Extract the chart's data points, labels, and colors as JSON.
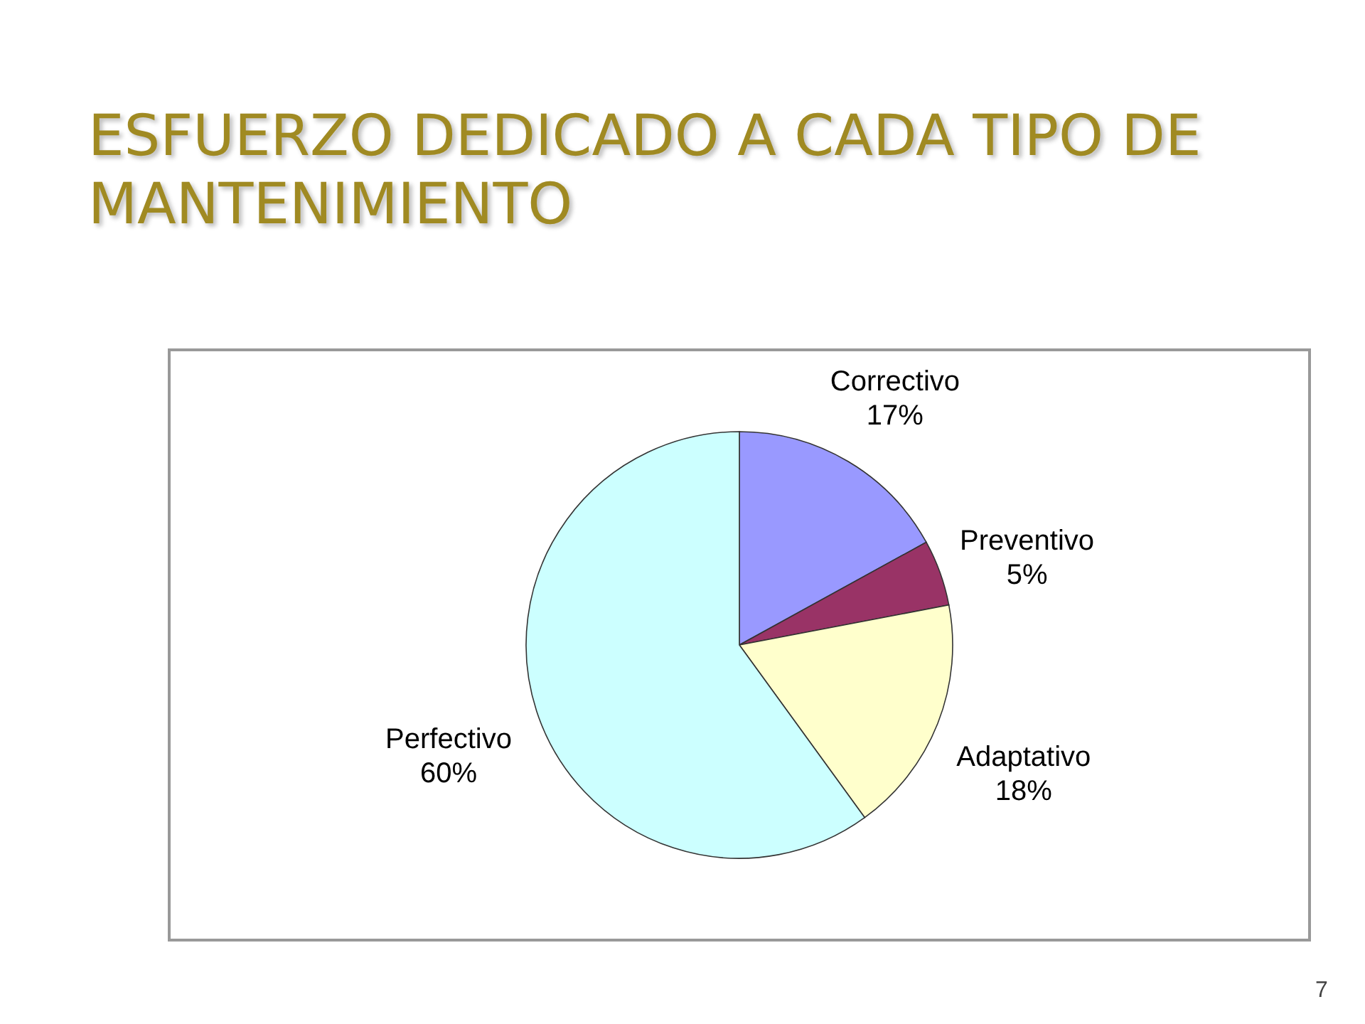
{
  "chart_data": {
    "type": "pie",
    "title": "ESFUERZO DEDICADO A CADA TIPO DE MANTENIMIENTO",
    "categories": [
      "Correctivo",
      "Preventivo",
      "Adaptativo",
      "Perfectivo"
    ],
    "values": [
      17,
      5,
      18,
      60
    ],
    "colors": [
      "#9999ff",
      "#993366",
      "#ffffcc",
      "#ccffff"
    ],
    "value_labels": [
      "17%",
      "5%",
      "18%",
      "60%"
    ],
    "legend": false,
    "annotations": [
      "7"
    ]
  }
}
